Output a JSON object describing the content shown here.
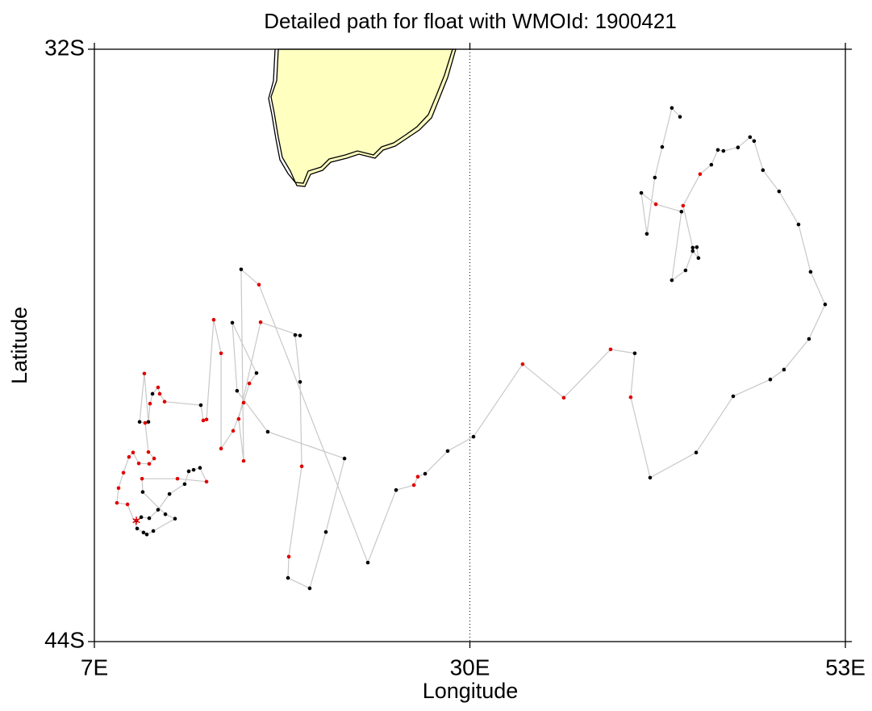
{
  "chart_data": {
    "type": "line",
    "title": "Detailed path for float with WMOId: 1900421",
    "xlabel": "Longitude",
    "ylabel": "Latitude",
    "x": [
      9.57,
      9.87,
      10.36,
      10.9,
      11.6,
      12.53,
      12.78,
      13.08,
      13.47,
      13.87,
      12.09,
      9.92,
      9.96,
      11.35,
      11.94,
      10.61,
      10.21,
      10.01,
      9.62,
      9.03,
      8.38,
      8.48,
      8.78,
      9.12,
      9.37,
      9.72,
      10.36,
      10.66,
      10.31,
      10.11,
      9.77,
      10.06,
      10.31,
      10.41,
      10.56,
      10.9,
      11.0,
      11.3,
      13.52,
      13.67,
      13.87,
      14.31,
      14.76,
      14.76,
      15.5,
      16.14,
      16.49,
      16.93,
      15.45,
      15.74,
      17.62,
      22.32,
      21.18,
      20.19,
      18.86,
      18.91,
      19.7,
      19.6,
      19.3,
      19.6,
      17.18,
      15.84,
      16.14,
      15.99,
      17.08,
      23.75,
      25.48,
      26.57,
      26.81,
      27.26,
      28.64,
      30.22,
      33.23,
      35.75,
      38.62,
      40.1,
      39.85,
      41.04,
      43.86,
      46.13,
      48.4,
      49.24,
      50.77,
      51.76,
      50.87,
      50.13,
      48.94,
      47.95,
      47.41,
      47.16,
      46.42,
      45.53,
      45.19,
      44.79,
      44.1,
      43.06,
      43.65,
      43.9,
      44.0,
      43.65,
      43.21,
      42.37,
      42.96,
      41.39,
      40.5,
      40.84,
      41.33,
      41.78,
      42.37,
      42.87
    ],
    "y": [
      -41.55,
      -41.48,
      -41.5,
      -41.33,
      -41.01,
      -40.81,
      -40.55,
      -40.52,
      -40.48,
      -40.76,
      -40.7,
      -40.7,
      -40.97,
      -41.42,
      -41.51,
      -41.76,
      -41.83,
      -41.79,
      -41.71,
      -41.22,
      -41.19,
      -40.89,
      -40.58,
      -40.26,
      -40.17,
      -40.39,
      -40.4,
      -40.29,
      -40.16,
      -39.57,
      -39.55,
      -38.57,
      -39.55,
      -39.18,
      -38.98,
      -38.85,
      -38.98,
      -39.14,
      -39.21,
      -39.52,
      -39.5,
      -37.48,
      -38.16,
      -40.09,
      -39.73,
      -39.16,
      -38.77,
      -38.56,
      -37.54,
      -38.92,
      -39.75,
      -40.29,
      -41.78,
      -42.92,
      -42.71,
      -42.28,
      -40.45,
      -38.74,
      -37.79,
      -37.8,
      -37.53,
      -39.49,
      -40.34,
      -36.46,
      -36.77,
      -42.4,
      -40.93,
      -40.83,
      -40.66,
      -40.6,
      -40.14,
      -39.85,
      -38.38,
      -39.06,
      -38.08,
      -38.16,
      -39.05,
      -40.68,
      -40.17,
      -39.03,
      -38.69,
      -38.49,
      -37.87,
      -37.17,
      -36.51,
      -35.55,
      -34.88,
      -34.45,
      -33.86,
      -33.78,
      -33.99,
      -34.06,
      -34.04,
      -34.34,
      -34.53,
      -35.17,
      -36.02,
      -36.01,
      -36.23,
      -36.09,
      -36.48,
      -36.68,
      -35.29,
      -35.14,
      -34.91,
      -35.74,
      -34.6,
      -33.98,
      -33.19,
      -33.37
    ],
    "point_colors": [
      "#000000",
      "#000000",
      "#000000",
      "#000000",
      "#000000",
      "#000000",
      "#000000",
      "#000000",
      "#000000",
      "#e00000",
      "#e00000",
      "#e00000",
      "#000000",
      "#000000",
      "#000000",
      "#000000",
      "#000000",
      "#000000",
      "#000000",
      "#e00000",
      "#e00000",
      "#e00000",
      "#e00000",
      "#e00000",
      "#e00000",
      "#e00000",
      "#e00000",
      "#e00000",
      "#e00000",
      "#e00000",
      "#000000",
      "#e00000",
      "#000000",
      "#e00000",
      "#000000",
      "#e00000",
      "#e00000",
      "#e00000",
      "#000000",
      "#e00000",
      "#e00000",
      "#e00000",
      "#e00000",
      "#e00000",
      "#e00000",
      "#e00000",
      "#e00000",
      "#000000",
      "#000000",
      "#000000",
      "#000000",
      "#000000",
      "#000000",
      "#000000",
      "#000000",
      "#e00000",
      "#e00000",
      "#000000",
      "#000000",
      "#000000",
      "#e00000",
      "#e00000",
      "#e00000",
      "#000000",
      "#e00000",
      "#000000",
      "#000000",
      "#e00000",
      "#e00000",
      "#000000",
      "#000000",
      "#000000",
      "#e00000",
      "#e00000",
      "#e00000",
      "#000000",
      "#e00000",
      "#000000",
      "#000000",
      "#000000",
      "#000000",
      "#000000",
      "#000000",
      "#000000",
      "#000000",
      "#000000",
      "#000000",
      "#000000",
      "#000000",
      "#000000",
      "#000000",
      "#000000",
      "#000000",
      "#000000",
      "#e00000",
      "#e00000",
      "#000000",
      "#000000",
      "#000000",
      "#000000",
      "#000000",
      "#000000",
      "#000000",
      "#e00000",
      "#000000",
      "#000000",
      "#000000",
      "#000000",
      "#000000",
      "#000000"
    ],
    "line_color": "#c8c8c8",
    "start_marker_color": "#e00000",
    "xlim": [
      7,
      53
    ],
    "ylim": [
      -44,
      -32
    ],
    "xticks": [
      {
        "value": 7,
        "label": "7E"
      },
      {
        "value": 30,
        "label": "30E"
      },
      {
        "value": 53,
        "label": "53E"
      }
    ],
    "yticks": [
      {
        "value": -44,
        "label": "44S"
      },
      {
        "value": -32,
        "label": "32S"
      }
    ]
  }
}
